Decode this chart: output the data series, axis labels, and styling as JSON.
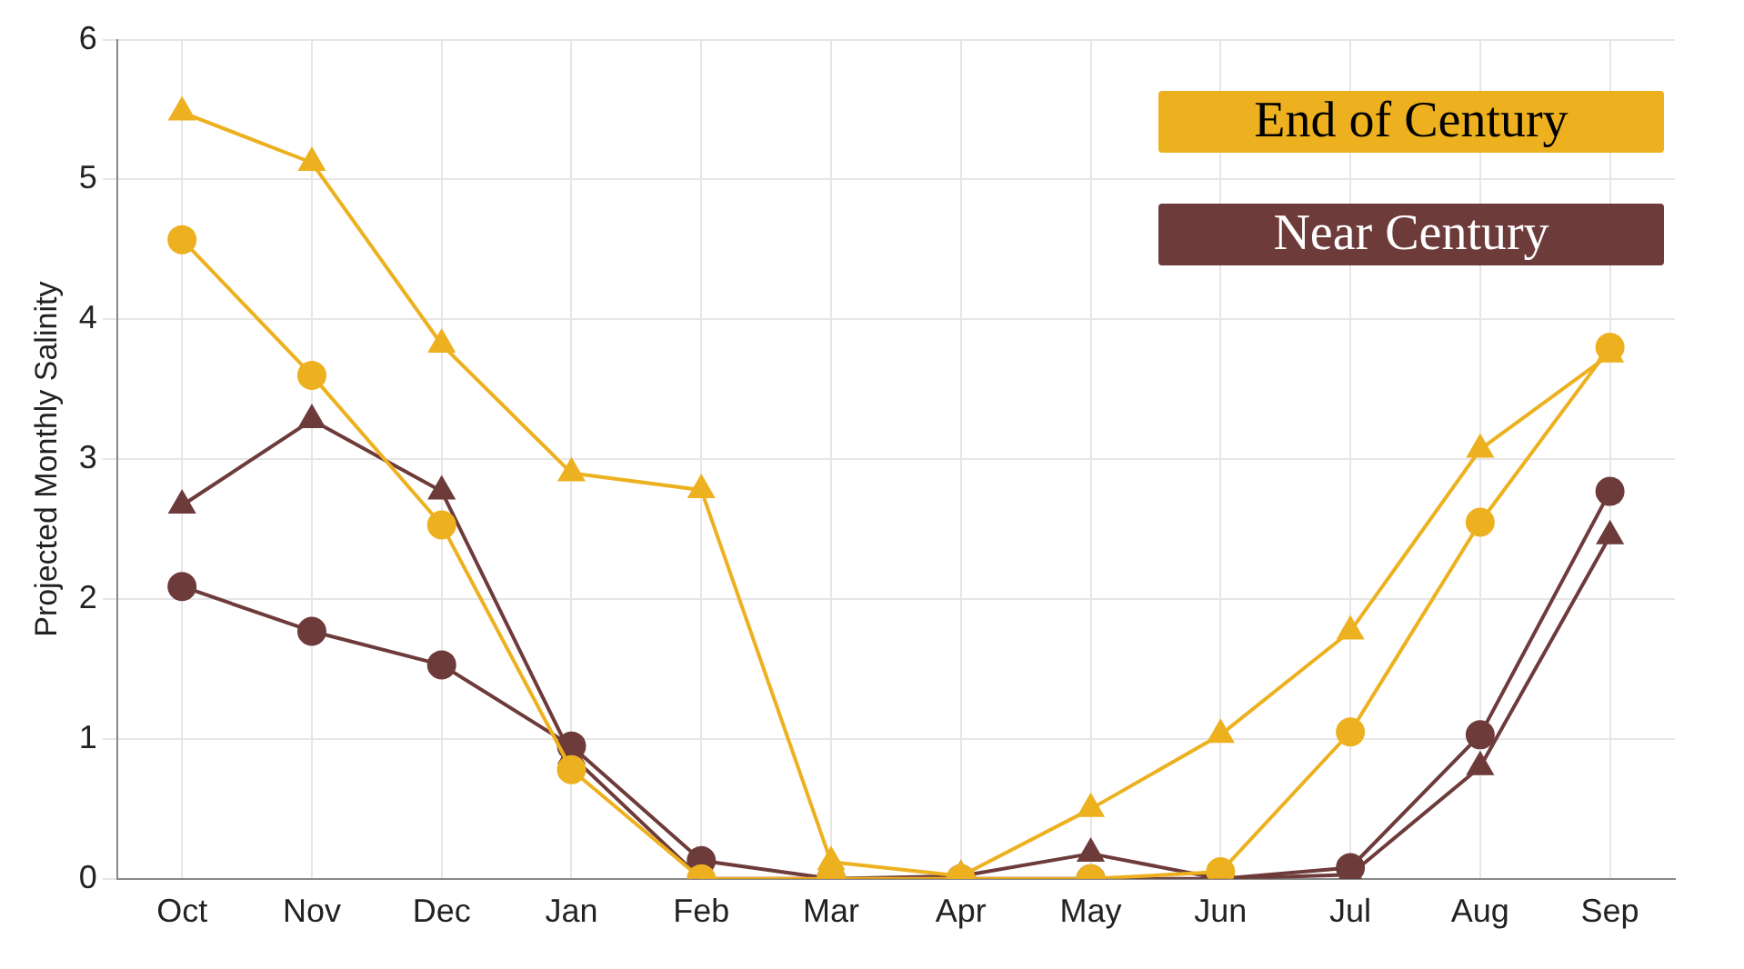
{
  "chart_data": {
    "type": "line",
    "ylabel": "Projected Monthly Salinity",
    "categories": [
      "Oct",
      "Nov",
      "Dec",
      "Jan",
      "Feb",
      "Mar",
      "Apr",
      "May",
      "Jun",
      "Jul",
      "Aug",
      "Sep"
    ],
    "ylim": [
      0,
      6
    ],
    "yticks": [
      0,
      1,
      2,
      3,
      4,
      5,
      6
    ],
    "grid": true,
    "legend": "top right",
    "series": [
      {
        "name": "End of Century",
        "color": "#edb120",
        "marker": "triangle",
        "values": [
          5.48,
          5.12,
          3.82,
          2.9,
          2.78,
          0.12,
          0.02,
          0.5,
          1.03,
          1.77,
          3.07,
          3.75
        ]
      },
      {
        "color": "#edb120",
        "marker": "circle",
        "values": [
          4.57,
          3.6,
          2.53,
          0.78,
          0,
          0,
          0,
          0,
          0.05,
          1.05,
          2.55,
          3.8
        ]
      },
      {
        "name": "Near Century",
        "color": "#6e3b3b",
        "marker": "triangle",
        "values": [
          2.67,
          3.28,
          2.77,
          0.88,
          0,
          0,
          0.02,
          0.18,
          0,
          0.03,
          0.8,
          2.45
        ]
      },
      {
        "color": "#6e3b3b",
        "marker": "circle",
        "values": [
          2.09,
          1.77,
          1.53,
          0.95,
          0.13,
          0,
          0,
          0,
          0,
          0.08,
          1.03,
          2.77
        ]
      }
    ]
  }
}
